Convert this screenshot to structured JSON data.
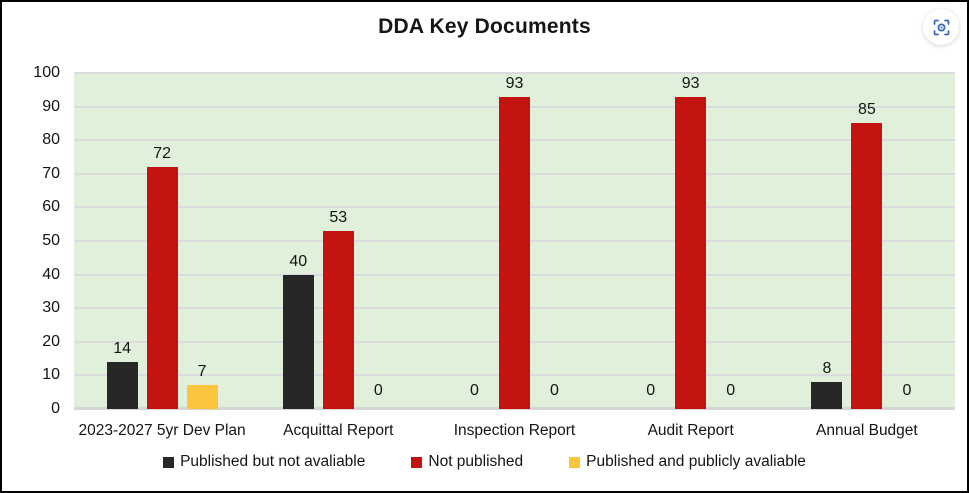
{
  "title": "DDA Key Documents",
  "toolbar": {
    "screenshot_button": "screenshot-capture-icon",
    "icon_color": "#3a68c4"
  },
  "colors": {
    "plot_background": "#e1f0db",
    "gridline": "#dbdbdf",
    "axis_baseline": "#d6d6d6",
    "frame_border": "#000000",
    "text": "#141414"
  },
  "chart_data": {
    "type": "bar",
    "title": "DDA Key Documents",
    "categories": [
      "2023-2027 5yr Dev Plan",
      "Acquittal Report",
      "Inspection Report",
      "Audit Report",
      "Annual Budget"
    ],
    "series": [
      {
        "name": "Published but not avaliable",
        "color": "#272727",
        "values": [
          14,
          40,
          0,
          0,
          8
        ]
      },
      {
        "name": "Not published",
        "color": "#c41411",
        "values": [
          72,
          53,
          93,
          93,
          85
        ]
      },
      {
        "name": "Published and publicly avaliable",
        "color": "#fdc53e",
        "values": [
          7,
          0,
          0,
          0,
          0
        ]
      }
    ],
    "ylabel": "",
    "xlabel": "",
    "ylim": [
      0,
      100
    ],
    "yticks": [
      0,
      10,
      20,
      30,
      40,
      50,
      60,
      70,
      80,
      90,
      100
    ],
    "grid": true,
    "data_labels": true,
    "legend_position": "bottom"
  }
}
